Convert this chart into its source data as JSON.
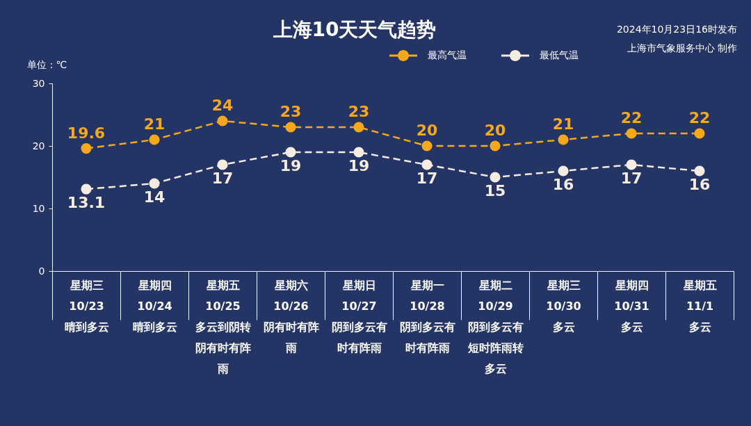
{
  "chart_data": {
    "type": "line",
    "title": "上海10天天气趋势",
    "ylabel": "单位：℃",
    "categories": [
      "星期三\n10/23\n晴到多云",
      "星期四\n10/24\n晴到多云",
      "星期五\n10/25\n多云到阴转阴有时有阵雨",
      "星期六\n10/26\n阴有时有阵雨",
      "星期日\n10/27\n阴到多云有时有阵雨",
      "星期一\n10/28\n阴到多云有时有阵雨",
      "星期二\n10/29\n阴到多云有短时阵雨转多云",
      "星期三\n10/30\n多云",
      "星期四\n10/31\n多云",
      "星期五\n11/1\n多云"
    ],
    "series": [
      {
        "name": "最高气温",
        "color": "#f5a81c",
        "values": [
          19.6,
          21,
          24,
          23,
          23,
          20,
          20,
          21,
          22,
          22
        ]
      },
      {
        "name": "最低气温",
        "color": "#f5ede2",
        "values": [
          13.1,
          14,
          17,
          19,
          19,
          17,
          15,
          16,
          17,
          16
        ]
      }
    ],
    "ylim": [
      0,
      30
    ],
    "yticks": [
      0,
      10,
      20,
      30
    ],
    "data_labels": true,
    "legend": "top",
    "marker": "circle",
    "line_style": "dashed",
    "annotations": [
      "2024年10月23日16时发布",
      "上海市气象服务中心 制作"
    ]
  }
}
